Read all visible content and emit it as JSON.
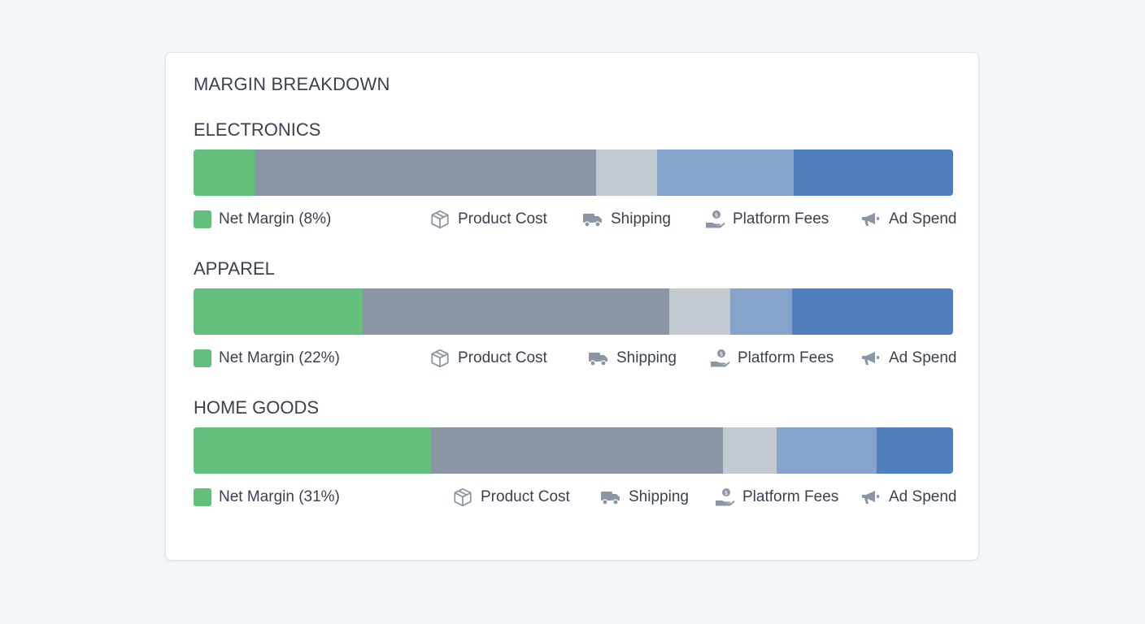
{
  "title": "MARGIN BREAKDOWN",
  "colors": {
    "net_margin": "#62c07c",
    "product_cost": "#8a96a5",
    "shipping": "#c2c9d1",
    "platform_fees": "#86a3cc",
    "ad_spend": "#4f80bd"
  },
  "legend_labels": {
    "product_cost": "Product Cost",
    "shipping": "Shipping",
    "platform_fees": "Platform Fees",
    "ad_spend": "Ad Spend"
  },
  "icons": {
    "product_cost": "box-icon",
    "shipping": "truck-icon",
    "platform_fees": "hand-coin-icon",
    "ad_spend": "megaphone-icon"
  },
  "chart_data": {
    "type": "bar",
    "orientation": "horizontal-stacked",
    "categories": [
      "ELECTRONICS",
      "APPAREL",
      "HOME GOODS"
    ],
    "series": [
      {
        "name": "Net Margin",
        "values": [
          8,
          22,
          31
        ]
      },
      {
        "name": "Product Cost",
        "values": [
          45,
          40,
          38
        ]
      },
      {
        "name": "Shipping",
        "values": [
          8,
          8,
          7
        ]
      },
      {
        "name": "Platform Fees",
        "values": [
          18,
          8,
          13
        ]
      },
      {
        "name": "Ad Spend",
        "values": [
          21,
          21,
          10
        ]
      }
    ],
    "legend_texts": [
      [
        "Net Margin (8%)",
        "Product Cost",
        "Shipping",
        "Platform Fees",
        "Ad Spend"
      ],
      [
        "Net Margin (22%)",
        "Product Cost",
        "Shipping",
        "Platform Fees",
        "Ad Spend"
      ],
      [
        "Net Margin (31%)",
        "Product Cost",
        "Shipping",
        "Platform Fees",
        "Ad Spend"
      ]
    ]
  }
}
